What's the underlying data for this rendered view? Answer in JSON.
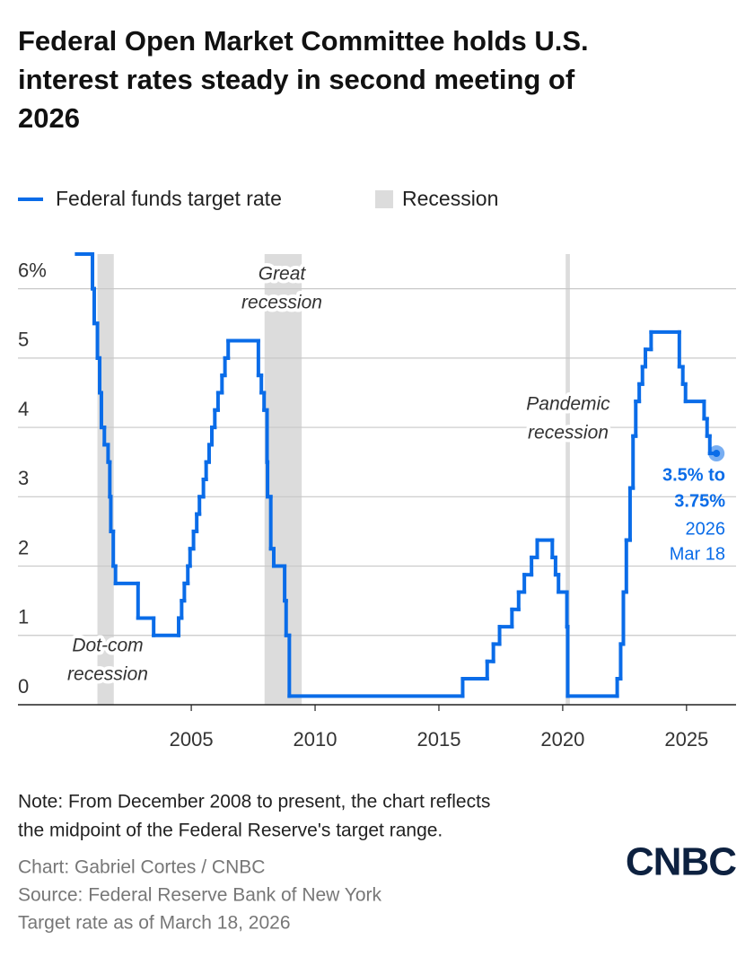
{
  "chart_data": {
    "type": "step",
    "title": [
      "Federal Open Market Committee holds U.S.",
      "interest rates steady in second meeting of",
      "2026"
    ],
    "series": [
      {
        "name": "Federal funds target rate",
        "color": "#0a6ce8",
        "x": [
          2000.37,
          2001.01,
          2001.08,
          2001.21,
          2001.3,
          2001.37,
          2001.49,
          2001.64,
          2001.71,
          2001.75,
          2001.85,
          2001.94,
          2002.85,
          2003.48,
          2004.49,
          2004.61,
          2004.72,
          2004.86,
          2004.95,
          2005.09,
          2005.22,
          2005.33,
          2005.49,
          2005.6,
          2005.72,
          2005.83,
          2005.95,
          2006.08,
          2006.24,
          2006.36,
          2006.49,
          2007.71,
          2007.83,
          2007.94,
          2008.06,
          2008.08,
          2008.21,
          2008.33,
          2008.77,
          2008.83,
          2008.96,
          2015.96,
          2016.95,
          2017.2,
          2017.45,
          2017.95,
          2018.22,
          2018.45,
          2018.74,
          2018.97,
          2019.58,
          2019.71,
          2019.83,
          2020.17,
          2020.2,
          2022.2,
          2022.34,
          2022.45,
          2022.57,
          2022.72,
          2022.84,
          2022.95,
          2023.09,
          2023.22,
          2023.34,
          2023.57,
          2024.71,
          2024.85,
          2024.96,
          2025.71,
          2025.83,
          2025.94,
          2026.21
        ],
        "values": [
          6.5,
          6.0,
          5.5,
          5.0,
          4.5,
          4.0,
          3.75,
          3.5,
          3.0,
          2.5,
          2.0,
          1.75,
          1.25,
          1.0,
          1.25,
          1.5,
          1.75,
          2.0,
          2.25,
          2.5,
          2.75,
          3.0,
          3.25,
          3.5,
          3.75,
          4.0,
          4.25,
          4.5,
          4.75,
          5.0,
          5.25,
          4.75,
          4.5,
          4.25,
          3.5,
          3.0,
          2.25,
          2.0,
          1.5,
          1.0,
          0.125,
          0.375,
          0.625,
          0.875,
          1.125,
          1.375,
          1.625,
          1.875,
          2.125,
          2.375,
          2.125,
          1.875,
          1.625,
          1.125,
          0.125,
          0.375,
          0.875,
          1.625,
          2.375,
          3.125,
          3.875,
          4.375,
          4.625,
          4.875,
          5.125,
          5.375,
          4.875,
          4.625,
          4.375,
          4.125,
          3.875,
          3.625,
          3.625
        ]
      }
    ],
    "recession_legend": "Recession",
    "recession_color": "#dcdcdc",
    "recessions": [
      {
        "label": [
          "Dot-com",
          "recession"
        ],
        "start": 2001.21,
        "end": 2001.87
      },
      {
        "label": [
          "Great",
          "recession"
        ],
        "start": 2007.96,
        "end": 2009.46
      },
      {
        "label": [
          "Pandemic",
          "recession"
        ],
        "start": 2020.12,
        "end": 2020.29
      }
    ],
    "end_label": {
      "rate": [
        "3.5% to",
        "3.75%"
      ],
      "date": [
        "2026",
        "Mar 18"
      ]
    },
    "xlim": [
      1998,
      2027
    ],
    "xticks": [
      2005,
      2010,
      2015,
      2020,
      2025
    ],
    "ylim": [
      0,
      6.5
    ],
    "yticks": [
      0,
      1,
      2,
      3,
      4,
      5,
      {
        "value": 6,
        "label": "6%"
      }
    ],
    "grid": true
  },
  "note": [
    "Note: From December 2008 to present, the chart reflects",
    "the midpoint of the Federal Reserve's target range."
  ],
  "credits": [
    "Chart: Gabriel Cortes / CNBC",
    "Source: Federal Reserve Bank of New York",
    "Target rate as of March 18, 2026"
  ],
  "logo": "CNBC"
}
